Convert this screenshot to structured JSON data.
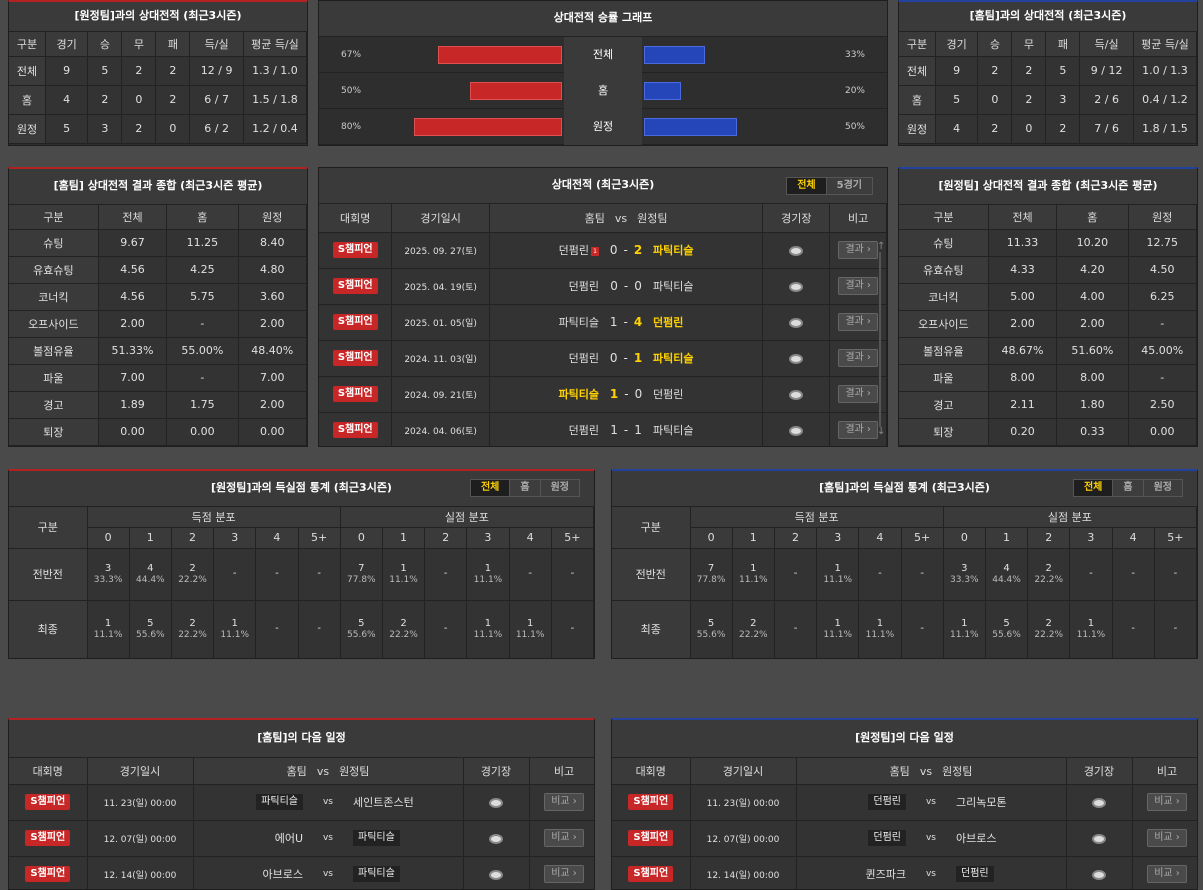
{
  "h2h_away": {
    "title": "[원정팀]과의 상대전적 (최근3시즌)",
    "headers": [
      "구분",
      "경기",
      "승",
      "무",
      "패",
      "득/실",
      "평균 득/실"
    ],
    "rows": [
      [
        "전체",
        "9",
        "5",
        "2",
        "2",
        "12 / 9",
        "1.3 / 1.0"
      ],
      [
        "홈",
        "4",
        "2",
        "0",
        "2",
        "6 / 7",
        "1.5 / 1.8"
      ],
      [
        "원정",
        "5",
        "3",
        "2",
        "0",
        "6 / 2",
        "1.2 / 0.4"
      ]
    ]
  },
  "graph": {
    "title": "상대전적 승률 그래프",
    "rows": [
      {
        "label": "전체",
        "left": "67%",
        "right": "33%",
        "left_value": 67,
        "right_value": 33
      },
      {
        "label": "홈",
        "left": "50%",
        "right": "20%",
        "left_value": 50,
        "right_value": 20
      },
      {
        "label": "원정",
        "left": "80%",
        "right": "50%",
        "left_value": 80,
        "right_value": 50
      }
    ]
  },
  "h2h_home": {
    "title": "[홈팀]과의 상대전적 (최근3시즌)",
    "headers": [
      "구분",
      "경기",
      "승",
      "무",
      "패",
      "득/실",
      "평균 득/실"
    ],
    "rows": [
      [
        "전체",
        "9",
        "2",
        "2",
        "5",
        "9 / 12",
        "1.0 / 1.3"
      ],
      [
        "홈",
        "5",
        "0",
        "2",
        "3",
        "2 / 6",
        "0.4 / 1.2"
      ],
      [
        "원정",
        "4",
        "2",
        "0",
        "2",
        "7 / 6",
        "1.8 / 1.5"
      ]
    ]
  },
  "sum_home": {
    "title": "[홈팀] 상대전적 결과 종합 (최근3시즌 평균)",
    "headers": [
      "구분",
      "전체",
      "홈",
      "원정"
    ],
    "rows": [
      [
        "슈팅",
        "9.67",
        "11.25",
        "8.40"
      ],
      [
        "유효슈팅",
        "4.56",
        "4.25",
        "4.80"
      ],
      [
        "코너킥",
        "4.56",
        "5.75",
        "3.60"
      ],
      [
        "오프사이드",
        "2.00",
        "-",
        "2.00"
      ],
      [
        "볼점유율",
        "51.33%",
        "55.00%",
        "48.40%"
      ],
      [
        "파울",
        "7.00",
        "-",
        "7.00"
      ],
      [
        "경고",
        "1.89",
        "1.75",
        "2.00"
      ],
      [
        "퇴장",
        "0.00",
        "0.00",
        "0.00"
      ]
    ]
  },
  "matches": {
    "title": "상대전적 (최근3시즌)",
    "tabs": [
      "전체",
      "5경기"
    ],
    "headers": [
      "대회명",
      "경기일시",
      "홈팀",
      "vs",
      "원정팀",
      "경기장",
      "비고"
    ],
    "btn": "결과",
    "card": "1",
    "rows": [
      {
        "comp": "S챔피언",
        "date": "2025. 09. 27(토)",
        "home": "던펌린",
        "hs": "0",
        "sep": "-",
        "as": "2",
        "away": "파틱티슬",
        "win": "away",
        "card": true
      },
      {
        "comp": "S챔피언",
        "date": "2025. 04. 19(토)",
        "home": "던펌린",
        "hs": "0",
        "sep": "-",
        "as": "0",
        "away": "파틱티슬",
        "win": "none"
      },
      {
        "comp": "S챔피언",
        "date": "2025. 01. 05(일)",
        "home": "파틱티슬",
        "hs": "1",
        "sep": "-",
        "as": "4",
        "away": "던펌린",
        "win": "away"
      },
      {
        "comp": "S챔피언",
        "date": "2024. 11. 03(일)",
        "home": "던펌린",
        "hs": "0",
        "sep": "-",
        "as": "1",
        "away": "파틱티슬",
        "win": "away"
      },
      {
        "comp": "S챔피언",
        "date": "2024. 09. 21(토)",
        "home": "파틱티슬",
        "hs": "1",
        "sep": "-",
        "as": "0",
        "away": "던펌린",
        "win": "home"
      },
      {
        "comp": "S챔피언",
        "date": "2024. 04. 06(토)",
        "home": "던펌린",
        "hs": "1",
        "sep": "-",
        "as": "1",
        "away": "파틱티슬",
        "win": "none"
      }
    ]
  },
  "sum_away": {
    "title": "[원정팀] 상대전적 결과 종합 (최근3시즌 평균)",
    "headers": [
      "구분",
      "전체",
      "홈",
      "원정"
    ],
    "rows": [
      [
        "슈팅",
        "11.33",
        "10.20",
        "12.75"
      ],
      [
        "유효슈팅",
        "4.33",
        "4.20",
        "4.50"
      ],
      [
        "코너킥",
        "5.00",
        "4.00",
        "6.25"
      ],
      [
        "오프사이드",
        "2.00",
        "2.00",
        "-"
      ],
      [
        "볼점유율",
        "48.67%",
        "51.60%",
        "45.00%"
      ],
      [
        "파울",
        "8.00",
        "8.00",
        "-"
      ],
      [
        "경고",
        "2.11",
        "1.80",
        "2.50"
      ],
      [
        "퇴장",
        "0.20",
        "0.33",
        "0.00"
      ]
    ]
  },
  "goals_left": {
    "title": "[원정팀]과의 득실점 통계 (최근3시즌)",
    "tabs": [
      "전체",
      "홈",
      "원정"
    ],
    "h1": "구분",
    "h2": "득점 분포",
    "h3": "실점 분포",
    "cols": [
      "0",
      "1",
      "2",
      "3",
      "4",
      "5+"
    ],
    "rows": [
      {
        "label": "전반전",
        "cells": [
          [
            "3",
            "33.3%"
          ],
          [
            "4",
            "44.4%"
          ],
          [
            "2",
            "22.2%"
          ],
          [
            "-",
            ""
          ],
          [
            "-",
            ""
          ],
          [
            "-",
            ""
          ],
          [
            "7",
            "77.8%"
          ],
          [
            "1",
            "11.1%"
          ],
          [
            "-",
            ""
          ],
          [
            "1",
            "11.1%"
          ],
          [
            "-",
            ""
          ],
          [
            "-",
            ""
          ]
        ]
      },
      {
        "label": "최종",
        "cells": [
          [
            "1",
            "11.1%"
          ],
          [
            "5",
            "55.6%"
          ],
          [
            "2",
            "22.2%"
          ],
          [
            "1",
            "11.1%"
          ],
          [
            "-",
            ""
          ],
          [
            "-",
            ""
          ],
          [
            "5",
            "55.6%"
          ],
          [
            "2",
            "22.2%"
          ],
          [
            "-",
            ""
          ],
          [
            "1",
            "11.1%"
          ],
          [
            "1",
            "11.1%"
          ],
          [
            "-",
            ""
          ]
        ]
      }
    ]
  },
  "goals_right": {
    "title": "[홈팀]과의 득실점 통계 (최근3시즌)",
    "tabs": [
      "전체",
      "홈",
      "원정"
    ],
    "h1": "구분",
    "h2": "득점 분포",
    "h3": "실점 분포",
    "cols": [
      "0",
      "1",
      "2",
      "3",
      "4",
      "5+"
    ],
    "rows": [
      {
        "label": "전반전",
        "cells": [
          [
            "7",
            "77.8%"
          ],
          [
            "1",
            "11.1%"
          ],
          [
            "-",
            ""
          ],
          [
            "1",
            "11.1%"
          ],
          [
            "-",
            ""
          ],
          [
            "-",
            ""
          ],
          [
            "3",
            "33.3%"
          ],
          [
            "4",
            "44.4%"
          ],
          [
            "2",
            "22.2%"
          ],
          [
            "-",
            ""
          ],
          [
            "-",
            ""
          ],
          [
            "-",
            ""
          ]
        ]
      },
      {
        "label": "최종",
        "cells": [
          [
            "5",
            "55.6%"
          ],
          [
            "2",
            "22.2%"
          ],
          [
            "-",
            ""
          ],
          [
            "1",
            "11.1%"
          ],
          [
            "1",
            "11.1%"
          ],
          [
            "-",
            ""
          ],
          [
            "1",
            "11.1%"
          ],
          [
            "5",
            "55.6%"
          ],
          [
            "2",
            "22.2%"
          ],
          [
            "1",
            "11.1%"
          ],
          [
            "-",
            ""
          ],
          [
            "-",
            ""
          ]
        ]
      }
    ]
  },
  "next_home": {
    "title": "[홈팀]의 다음 일정",
    "headers": [
      "대회명",
      "경기일시",
      "홈팀",
      "vs",
      "원정팀",
      "경기장",
      "비고"
    ],
    "btn": "비교",
    "rows": [
      {
        "comp": "S챔피언",
        "date": "11. 23(일) 00:00",
        "home": "파틱티슬",
        "away": "세인트존스턴",
        "focus": "home"
      },
      {
        "comp": "S챔피언",
        "date": "12. 07(일) 00:00",
        "home": "에어U",
        "away": "파틱티슬",
        "focus": "away"
      },
      {
        "comp": "S챔피언",
        "date": "12. 14(일) 00:00",
        "home": "아브로스",
        "away": "파틱티슬",
        "focus": "away"
      }
    ]
  },
  "next_away": {
    "title": "[원정팀]의 다음 일정",
    "headers": [
      "대회명",
      "경기일시",
      "홈팀",
      "vs",
      "원정팀",
      "경기장",
      "비고"
    ],
    "btn": "비교",
    "rows": [
      {
        "comp": "S챔피언",
        "date": "11. 23(일) 00:00",
        "home": "던펌린",
        "away": "그리녹모톤",
        "focus": "home"
      },
      {
        "comp": "S챔피언",
        "date": "12. 07(일) 00:00",
        "home": "던펌린",
        "away": "아브로스",
        "focus": "home"
      },
      {
        "comp": "S챔피언",
        "date": "12. 14(일) 00:00",
        "home": "퀸즈파크",
        "away": "던펌린",
        "focus": "away"
      }
    ]
  },
  "colors": {
    "red": "#c72727",
    "blue": "#2546b8",
    "highlight": "#ffd200"
  }
}
